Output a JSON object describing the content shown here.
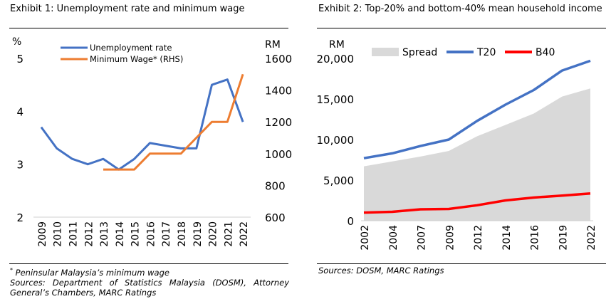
{
  "exhibit1": {
    "title": "Exhibit 1: Unemployment rate and minimum wage",
    "footnote_mark": "*",
    "footnote": " Peninsular Malaysia’s minimum wage",
    "sources": "Sources: Department of Statistics Malaysia (DOSM), Attorney General’s Chambers, MARC Ratings"
  },
  "exhibit2": {
    "title": "Exhibit 2: Top-20% and bottom-40% mean household income",
    "sources": "Sources: DOSM, MARC Ratings"
  },
  "colors": {
    "blue": "#4472C4",
    "orange": "#ED7D31",
    "red": "#FF0000",
    "spread": "#D9D9D9",
    "axis": "#D0D0D0"
  },
  "chart_data": [
    {
      "type": "line",
      "categories": [
        "2009",
        "2010",
        "2011",
        "2012",
        "2013",
        "2014",
        "2015",
        "2016",
        "2017",
        "2018",
        "2019",
        "2020",
        "2021",
        "2022"
      ],
      "left_axis": {
        "label": "%",
        "ticks": [
          2,
          3,
          4,
          5
        ],
        "range": [
          2,
          5
        ]
      },
      "right_axis": {
        "label": "RM",
        "ticks": [
          600,
          800,
          1000,
          1200,
          1400,
          1600
        ],
        "range": [
          600,
          1600
        ]
      },
      "legend_position": "top",
      "series": [
        {
          "name": "Unemployment rate",
          "axis": "left",
          "color": "#4472C4",
          "values": [
            3.7,
            3.3,
            3.1,
            3.0,
            3.1,
            2.9,
            3.1,
            3.4,
            3.35,
            3.3,
            3.3,
            4.5,
            4.6,
            3.8
          ]
        },
        {
          "name": "Minimum Wage* (RHS)",
          "axis": "right",
          "color": "#ED7D31",
          "values": [
            null,
            null,
            null,
            null,
            900,
            900,
            900,
            1000,
            1000,
            1000,
            1100,
            1200,
            1200,
            1500
          ]
        }
      ]
    },
    {
      "type": "line",
      "categories": [
        "2002",
        "2004",
        "2007",
        "2009",
        "2012",
        "2014",
        "2016",
        "2019",
        "2022"
      ],
      "y_axis": {
        "label": "RM",
        "ticks": [
          "0",
          "5,000",
          "10,000",
          "15,000",
          "20,000"
        ],
        "range": [
          0,
          20000
        ]
      },
      "legend_position": "top",
      "series": [
        {
          "name": "Spread",
          "kind": "area",
          "color": "#D9D9D9",
          "values": [
            6700,
            7300,
            7900,
            8600,
            10400,
            11800,
            13200,
            15300,
            16300
          ]
        },
        {
          "name": "T20",
          "kind": "line",
          "color": "#4472C4",
          "values": [
            7700,
            8300,
            9200,
            10000,
            12300,
            14300,
            16100,
            18500,
            19700
          ]
        },
        {
          "name": "B40",
          "kind": "line",
          "color": "#FF0000",
          "values": [
            1000,
            1100,
            1400,
            1450,
            1900,
            2500,
            2850,
            3100,
            3350
          ]
        }
      ]
    }
  ]
}
